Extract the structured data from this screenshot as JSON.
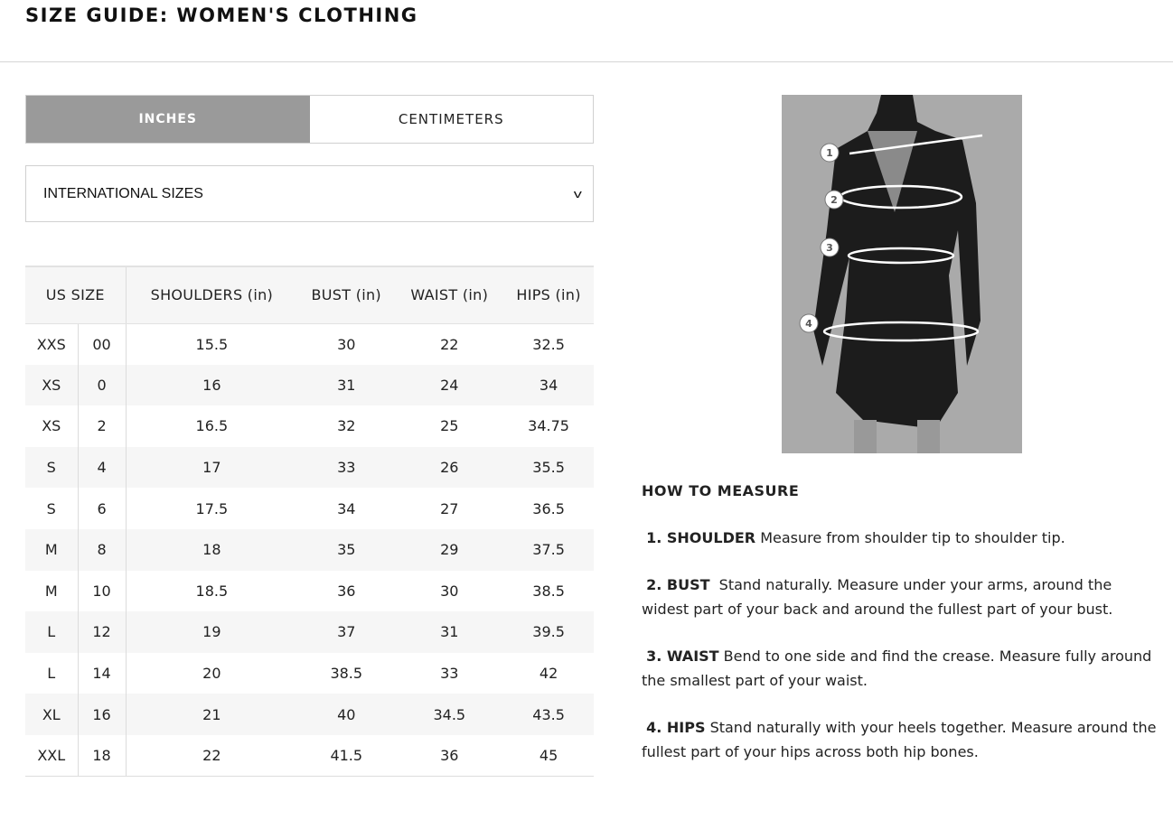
{
  "title": "SIZE GUIDE: WOMEN'S CLOTHING",
  "units": {
    "tabs": [
      {
        "label": "INCHES",
        "active": true
      },
      {
        "label": "CENTIMETERS",
        "active": false
      }
    ]
  },
  "size_system": {
    "selected": "INTERNATIONAL SIZES"
  },
  "table": {
    "headers": [
      "US SIZE",
      "SHOULDERS (in)",
      "BUST (in)",
      "WAIST (in)",
      "HIPS (in)"
    ],
    "rows": [
      [
        "XXS",
        "00",
        "15.5",
        "30",
        "22",
        "32.5"
      ],
      [
        "XS",
        "0",
        "16",
        "31",
        "24",
        "34"
      ],
      [
        "XS",
        "2",
        "16.5",
        "32",
        "25",
        "34.75"
      ],
      [
        "S",
        "4",
        "17",
        "33",
        "26",
        "35.5"
      ],
      [
        "S",
        "6",
        "17.5",
        "34",
        "27",
        "36.5"
      ],
      [
        "M",
        "8",
        "18",
        "35",
        "29",
        "37.5"
      ],
      [
        "M",
        "10",
        "18.5",
        "36",
        "30",
        "38.5"
      ],
      [
        "L",
        "12",
        "19",
        "37",
        "31",
        "39.5"
      ],
      [
        "L",
        "14",
        "20",
        "38.5",
        "33",
        "42"
      ],
      [
        "XL",
        "16",
        "21",
        "40",
        "34.5",
        "43.5"
      ],
      [
        "XXL",
        "18",
        "22",
        "41.5",
        "36",
        "45"
      ]
    ]
  },
  "figure": {
    "markers": [
      "1",
      "2",
      "3",
      "4"
    ]
  },
  "how_to": {
    "heading": "HOW TO MEASURE",
    "items": [
      {
        "label": "1. SHOULDER",
        "text": "Measure from shoulder tip to shoulder tip."
      },
      {
        "label": "2. BUST",
        "text": "Stand naturally. Measure under your arms, around the widest part of your back and around the fullest part of your bust."
      },
      {
        "label": "3. WAIST",
        "text": "Bend to one side and find the crease. Measure fully around the smallest part of your waist."
      },
      {
        "label": "4. HIPS",
        "text": "Stand naturally with your heels together. Measure around the fullest part of your hips across both hip bones."
      }
    ]
  }
}
